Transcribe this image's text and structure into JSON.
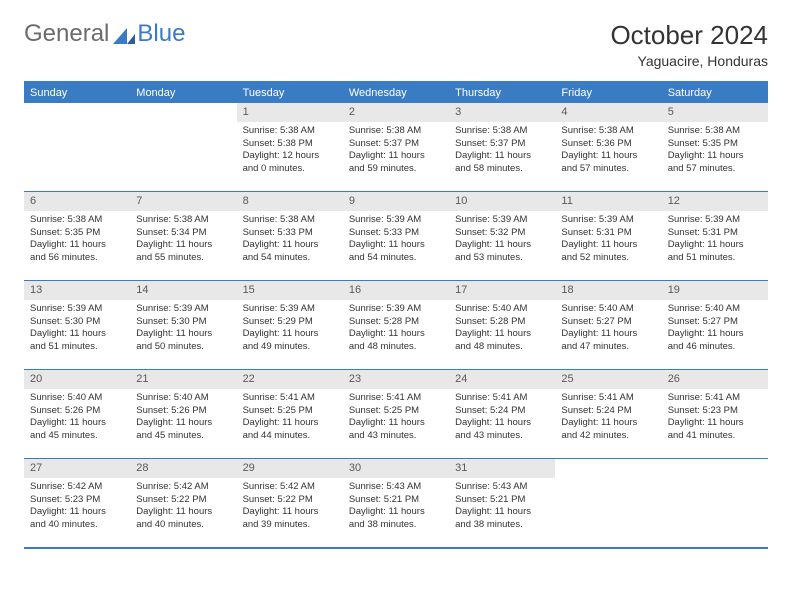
{
  "logo": {
    "general": "General",
    "blue": "Blue"
  },
  "title": "October 2024",
  "location": "Yaguacire, Honduras",
  "colors": {
    "accent": "#3a7cc4",
    "header_bg": "#3a7cc4",
    "daynum_bg": "#e8e8e8",
    "text": "#333333",
    "logo_gray": "#6b6b6b"
  },
  "days_of_week": [
    "Sunday",
    "Monday",
    "Tuesday",
    "Wednesday",
    "Thursday",
    "Friday",
    "Saturday"
  ],
  "weeks": [
    [
      null,
      null,
      {
        "n": "1",
        "sr": "5:38 AM",
        "ss": "5:38 PM",
        "dl": "12 hours and 0 minutes."
      },
      {
        "n": "2",
        "sr": "5:38 AM",
        "ss": "5:37 PM",
        "dl": "11 hours and 59 minutes."
      },
      {
        "n": "3",
        "sr": "5:38 AM",
        "ss": "5:37 PM",
        "dl": "11 hours and 58 minutes."
      },
      {
        "n": "4",
        "sr": "5:38 AM",
        "ss": "5:36 PM",
        "dl": "11 hours and 57 minutes."
      },
      {
        "n": "5",
        "sr": "5:38 AM",
        "ss": "5:35 PM",
        "dl": "11 hours and 57 minutes."
      }
    ],
    [
      {
        "n": "6",
        "sr": "5:38 AM",
        "ss": "5:35 PM",
        "dl": "11 hours and 56 minutes."
      },
      {
        "n": "7",
        "sr": "5:38 AM",
        "ss": "5:34 PM",
        "dl": "11 hours and 55 minutes."
      },
      {
        "n": "8",
        "sr": "5:38 AM",
        "ss": "5:33 PM",
        "dl": "11 hours and 54 minutes."
      },
      {
        "n": "9",
        "sr": "5:39 AM",
        "ss": "5:33 PM",
        "dl": "11 hours and 54 minutes."
      },
      {
        "n": "10",
        "sr": "5:39 AM",
        "ss": "5:32 PM",
        "dl": "11 hours and 53 minutes."
      },
      {
        "n": "11",
        "sr": "5:39 AM",
        "ss": "5:31 PM",
        "dl": "11 hours and 52 minutes."
      },
      {
        "n": "12",
        "sr": "5:39 AM",
        "ss": "5:31 PM",
        "dl": "11 hours and 51 minutes."
      }
    ],
    [
      {
        "n": "13",
        "sr": "5:39 AM",
        "ss": "5:30 PM",
        "dl": "11 hours and 51 minutes."
      },
      {
        "n": "14",
        "sr": "5:39 AM",
        "ss": "5:30 PM",
        "dl": "11 hours and 50 minutes."
      },
      {
        "n": "15",
        "sr": "5:39 AM",
        "ss": "5:29 PM",
        "dl": "11 hours and 49 minutes."
      },
      {
        "n": "16",
        "sr": "5:39 AM",
        "ss": "5:28 PM",
        "dl": "11 hours and 48 minutes."
      },
      {
        "n": "17",
        "sr": "5:40 AM",
        "ss": "5:28 PM",
        "dl": "11 hours and 48 minutes."
      },
      {
        "n": "18",
        "sr": "5:40 AM",
        "ss": "5:27 PM",
        "dl": "11 hours and 47 minutes."
      },
      {
        "n": "19",
        "sr": "5:40 AM",
        "ss": "5:27 PM",
        "dl": "11 hours and 46 minutes."
      }
    ],
    [
      {
        "n": "20",
        "sr": "5:40 AM",
        "ss": "5:26 PM",
        "dl": "11 hours and 45 minutes."
      },
      {
        "n": "21",
        "sr": "5:40 AM",
        "ss": "5:26 PM",
        "dl": "11 hours and 45 minutes."
      },
      {
        "n": "22",
        "sr": "5:41 AM",
        "ss": "5:25 PM",
        "dl": "11 hours and 44 minutes."
      },
      {
        "n": "23",
        "sr": "5:41 AM",
        "ss": "5:25 PM",
        "dl": "11 hours and 43 minutes."
      },
      {
        "n": "24",
        "sr": "5:41 AM",
        "ss": "5:24 PM",
        "dl": "11 hours and 43 minutes."
      },
      {
        "n": "25",
        "sr": "5:41 AM",
        "ss": "5:24 PM",
        "dl": "11 hours and 42 minutes."
      },
      {
        "n": "26",
        "sr": "5:41 AM",
        "ss": "5:23 PM",
        "dl": "11 hours and 41 minutes."
      }
    ],
    [
      {
        "n": "27",
        "sr": "5:42 AM",
        "ss": "5:23 PM",
        "dl": "11 hours and 40 minutes."
      },
      {
        "n": "28",
        "sr": "5:42 AM",
        "ss": "5:22 PM",
        "dl": "11 hours and 40 minutes."
      },
      {
        "n": "29",
        "sr": "5:42 AM",
        "ss": "5:22 PM",
        "dl": "11 hours and 39 minutes."
      },
      {
        "n": "30",
        "sr": "5:43 AM",
        "ss": "5:21 PM",
        "dl": "11 hours and 38 minutes."
      },
      {
        "n": "31",
        "sr": "5:43 AM",
        "ss": "5:21 PM",
        "dl": "11 hours and 38 minutes."
      },
      null,
      null
    ]
  ],
  "labels": {
    "sunrise": "Sunrise: ",
    "sunset": "Sunset: ",
    "daylight": "Daylight: "
  }
}
